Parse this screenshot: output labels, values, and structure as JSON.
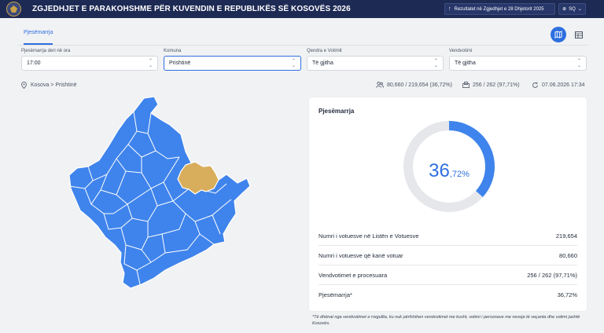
{
  "header": {
    "title": "ZGJEDHJET E PARAKOHSHME PËR KUVENDIN E REPUBLIKËS SË KOSOVËS 2026",
    "prev_results": "Rezultatet në Zgjedhjet e 28 Dhjetorit 2025",
    "lang": "SQ"
  },
  "tabs": [
    {
      "label": "Pjesëmarrja",
      "active": true
    }
  ],
  "view_toggle": {
    "map_icon": "map-icon",
    "table_icon": "table-icon",
    "active": "map"
  },
  "filters": [
    {
      "label": "Pjesëmarrja deri në ora",
      "value": "17:00"
    },
    {
      "label": "Komuna",
      "value": "Prishtinë"
    },
    {
      "label": "Qendra e Votimit",
      "value": "Të gjitha"
    },
    {
      "label": "Vendvotimi",
      "value": "Të gjitha"
    }
  ],
  "breadcrumb": "Kosova > Prishtinë",
  "stats": {
    "voters": "80,660 / 219,654 (36,72%)",
    "stations": "256 / 262 (97,71%)",
    "updated": "07.06.2026 17:34"
  },
  "map": {
    "highlighted_municipality": "Prishtinë",
    "base_color": "#3f84ec",
    "highlight_color": "#d8ae5c"
  },
  "card": {
    "title": "Pjesëmarrja",
    "gauge": {
      "value": 36.72,
      "int_part": "36",
      "dec_part": ",72%",
      "color": "#3f84ec",
      "track_color": "#e5e7eb"
    },
    "rows": [
      {
        "label": "Numri i votuesve në Listën e Votuesve",
        "value": "219,654"
      },
      {
        "label": "Numri i votuesve që kanë votuar",
        "value": "80,660"
      },
      {
        "label": "Vendvotimet e procesuara",
        "value": "256 / 262 (97,71%)"
      },
      {
        "label": "Pjesëmarrja*",
        "value": "36,72%"
      }
    ]
  },
  "footnote": "*Të dhënat nga vendvotimet e rregullta, ku nuk përfshihen vendvotimet me kusht, votimi i personave me nevoja të veçanta dhe votimi jashtë Kosovës."
}
